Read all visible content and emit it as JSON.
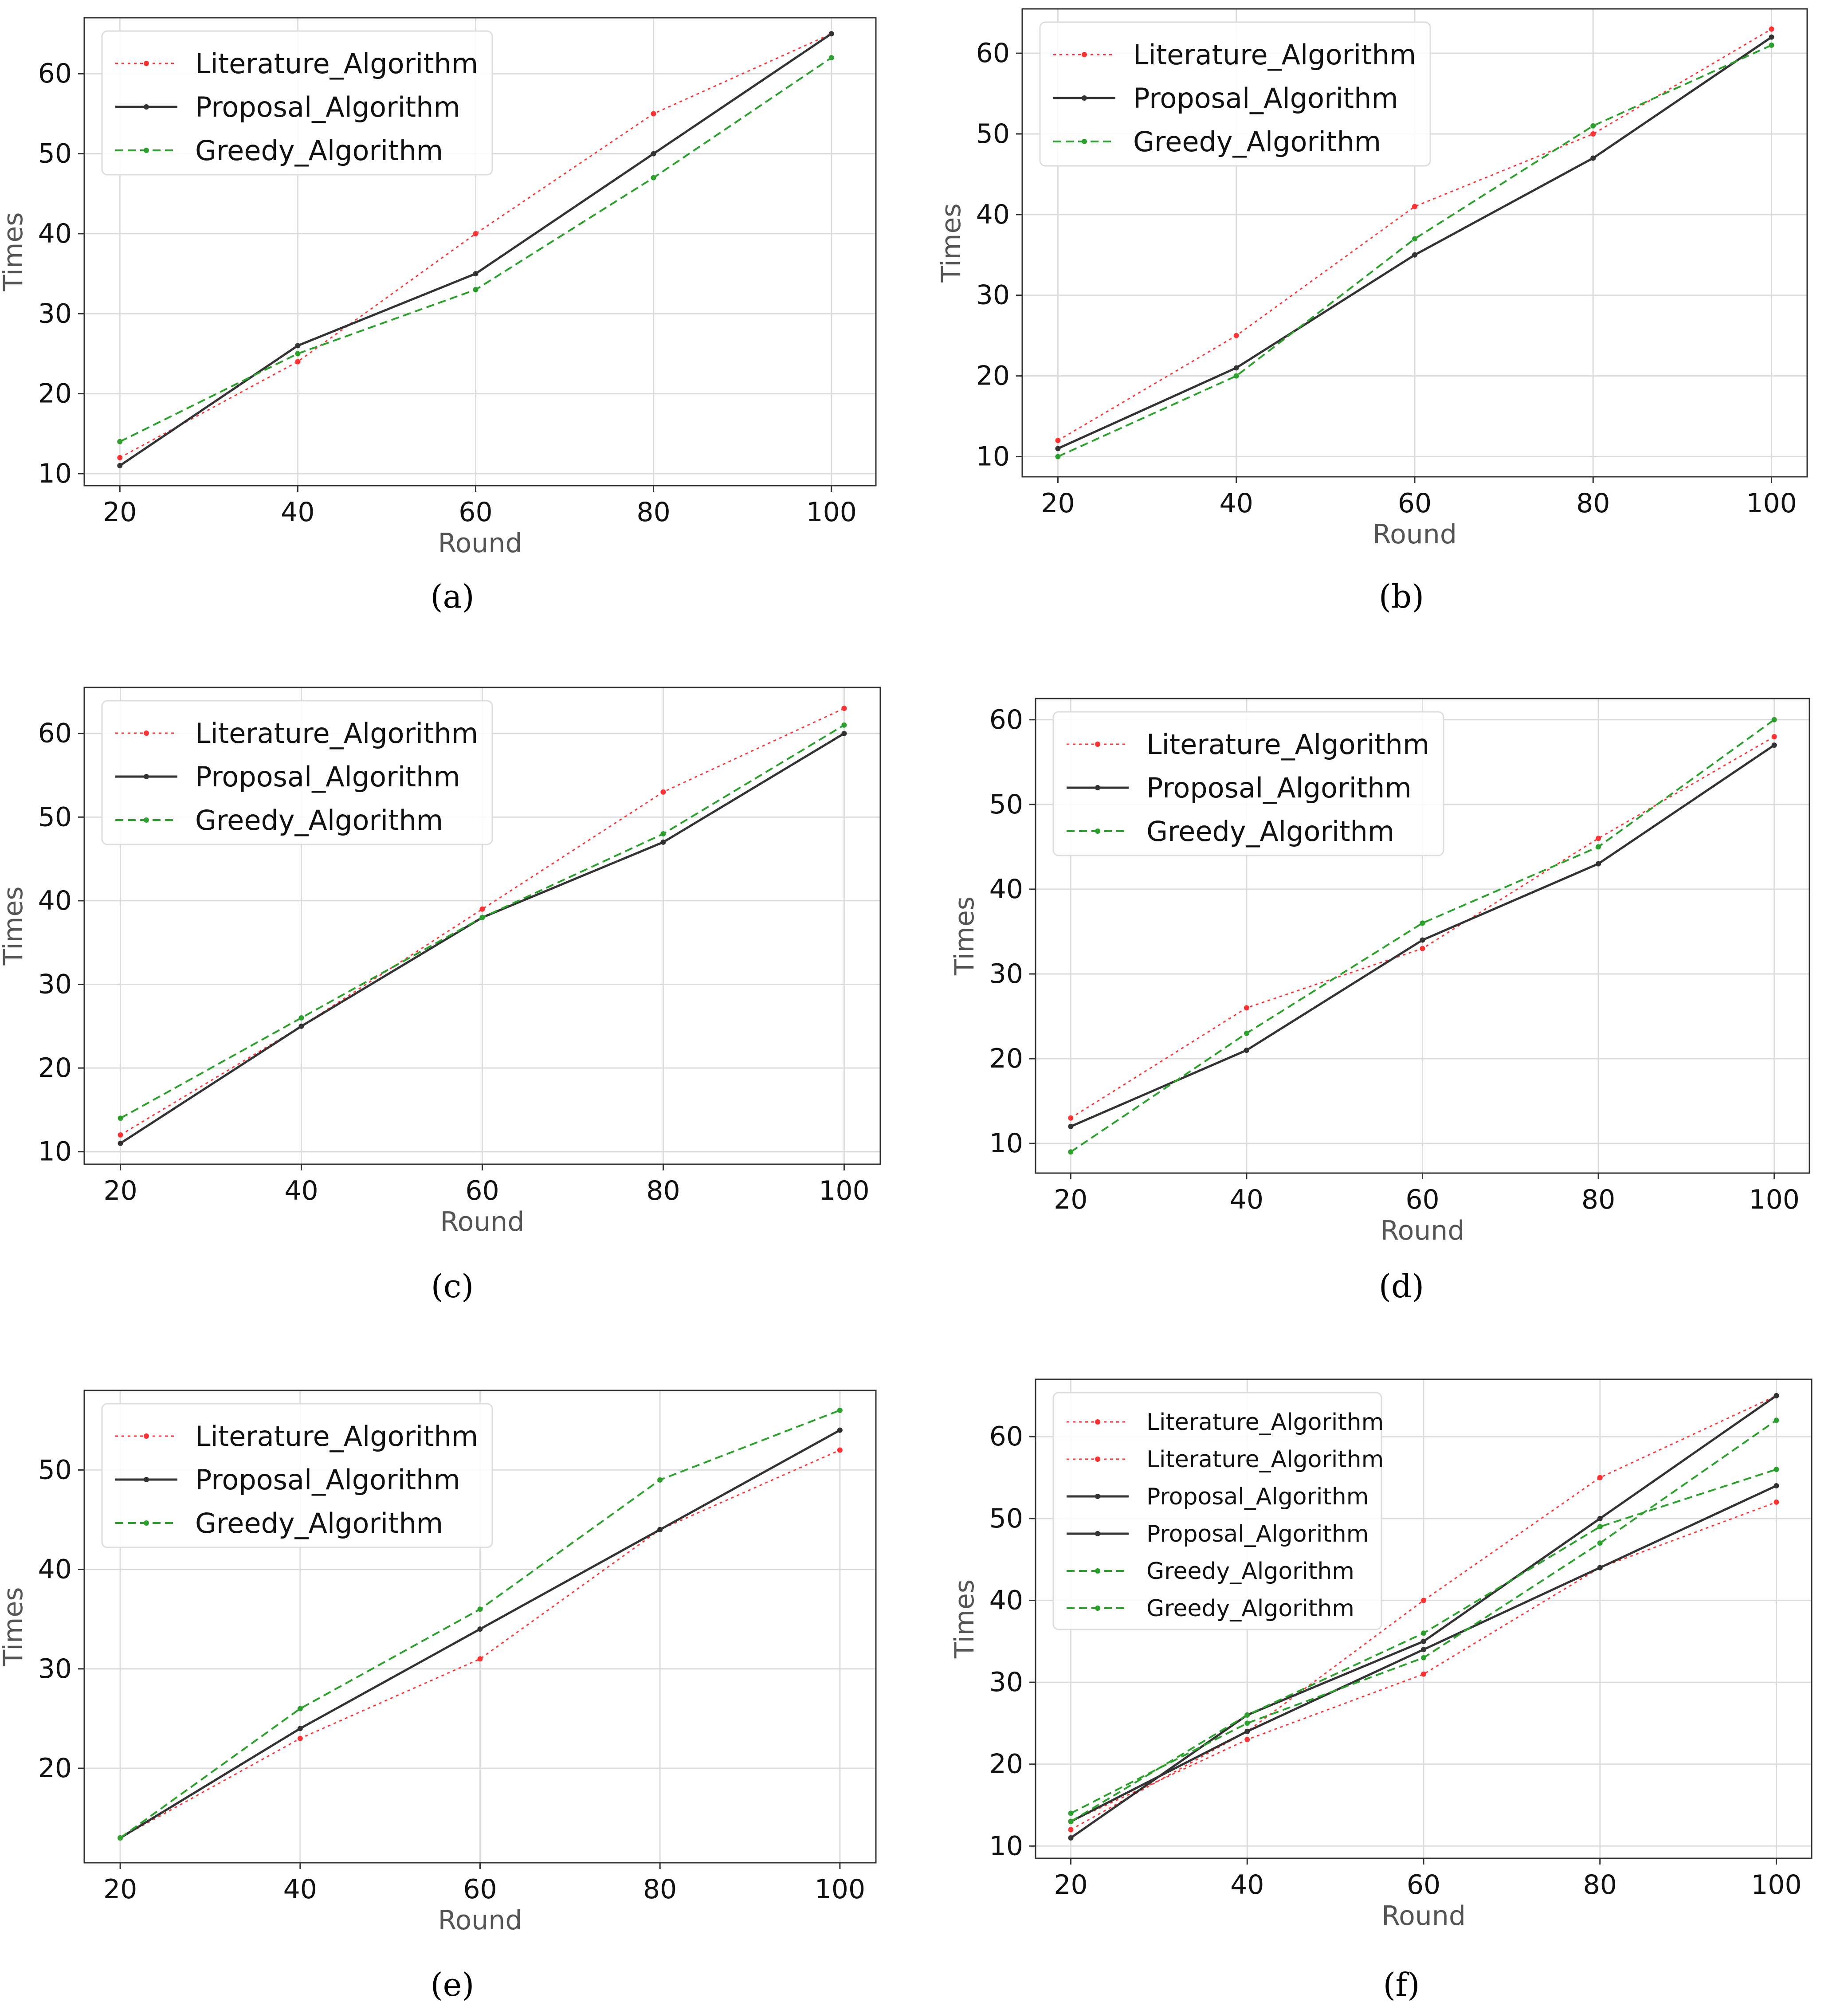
{
  "chart_data": [
    {
      "type": "line",
      "caption": "(a)",
      "title": "",
      "xlabel": "Round",
      "ylabel": "Times",
      "x": [
        20,
        40,
        60,
        80,
        100
      ],
      "xticks": [
        20,
        40,
        60,
        80,
        100
      ],
      "yticks": [
        10,
        20,
        30,
        40,
        50,
        60
      ],
      "xlim": [
        16,
        105
      ],
      "ylim": [
        8.5,
        67
      ],
      "grid": true,
      "legend_position": "upper-left",
      "series": [
        {
          "name": "Literature_Algorithm",
          "values": [
            12,
            24,
            40,
            55,
            65
          ],
          "color": "#ff3333",
          "style": "dotted"
        },
        {
          "name": "Proposal_Algorithm",
          "values": [
            11,
            26,
            35,
            50,
            65
          ],
          "color": "#333333",
          "style": "solid"
        },
        {
          "name": "Greedy_Algorithm",
          "values": [
            14,
            25,
            33,
            47,
            62
          ],
          "color": "#2ca02c",
          "style": "dashed"
        }
      ]
    },
    {
      "type": "line",
      "caption": "(b)",
      "title": "",
      "xlabel": "Round",
      "ylabel": "Times",
      "x": [
        20,
        40,
        60,
        80,
        100
      ],
      "xticks": [
        20,
        40,
        60,
        80,
        100
      ],
      "yticks": [
        10,
        20,
        30,
        40,
        50,
        60
      ],
      "xlim": [
        16,
        104
      ],
      "ylim": [
        7.5,
        65.5
      ],
      "grid": true,
      "legend_position": "upper-left",
      "series": [
        {
          "name": "Literature_Algorithm",
          "values": [
            12,
            25,
            41,
            50,
            63
          ],
          "color": "#ff3333",
          "style": "dotted"
        },
        {
          "name": "Proposal_Algorithm",
          "values": [
            11,
            21,
            35,
            47,
            62
          ],
          "color": "#333333",
          "style": "solid"
        },
        {
          "name": "Greedy_Algorithm",
          "values": [
            10,
            20,
            37,
            51,
            61
          ],
          "color": "#2ca02c",
          "style": "dashed"
        }
      ]
    },
    {
      "type": "line",
      "caption": "(c)",
      "title": "",
      "xlabel": "Round",
      "ylabel": "Times",
      "x": [
        20,
        40,
        60,
        80,
        100
      ],
      "xticks": [
        20,
        40,
        60,
        80,
        100
      ],
      "yticks": [
        10,
        20,
        30,
        40,
        50,
        60
      ],
      "xlim": [
        16,
        104
      ],
      "ylim": [
        8.5,
        65.5
      ],
      "grid": true,
      "legend_position": "upper-left",
      "series": [
        {
          "name": "Literature_Algorithm",
          "values": [
            12,
            25,
            39,
            53,
            63
          ],
          "color": "#ff3333",
          "style": "dotted"
        },
        {
          "name": "Proposal_Algorithm",
          "values": [
            11,
            25,
            38,
            47,
            60
          ],
          "color": "#333333",
          "style": "solid"
        },
        {
          "name": "Greedy_Algorithm",
          "values": [
            14,
            26,
            38,
            48,
            61
          ],
          "color": "#2ca02c",
          "style": "dashed"
        }
      ]
    },
    {
      "type": "line",
      "caption": "(d)",
      "title": "",
      "xlabel": "Round",
      "ylabel": "Times",
      "x": [
        20,
        40,
        60,
        80,
        100
      ],
      "xticks": [
        20,
        40,
        60,
        80,
        100
      ],
      "yticks": [
        10,
        20,
        30,
        40,
        50,
        60
      ],
      "xlim": [
        16,
        104
      ],
      "ylim": [
        6.5,
        62.5
      ],
      "grid": true,
      "legend_position": "upper-left",
      "series": [
        {
          "name": "Literature_Algorithm",
          "values": [
            13,
            26,
            33,
            46,
            58
          ],
          "color": "#ff3333",
          "style": "dotted"
        },
        {
          "name": "Proposal_Algorithm",
          "values": [
            12,
            21,
            34,
            43,
            57
          ],
          "color": "#333333",
          "style": "solid"
        },
        {
          "name": "Greedy_Algorithm",
          "values": [
            9,
            23,
            36,
            45,
            60
          ],
          "color": "#2ca02c",
          "style": "dashed"
        }
      ]
    },
    {
      "type": "line",
      "caption": "(e)",
      "title": "",
      "xlabel": "Round",
      "ylabel": "Times",
      "x": [
        20,
        40,
        60,
        80,
        100
      ],
      "xticks": [
        20,
        40,
        60,
        80,
        100
      ],
      "yticks": [
        20,
        30,
        40,
        50
      ],
      "xlim": [
        16,
        104
      ],
      "ylim": [
        10.5,
        58
      ],
      "grid": true,
      "legend_position": "upper-left",
      "series": [
        {
          "name": "Literature_Algorithm",
          "values": [
            13,
            23,
            31,
            44,
            52
          ],
          "color": "#ff3333",
          "style": "dotted"
        },
        {
          "name": "Proposal_Algorithm",
          "values": [
            13,
            24,
            34,
            44,
            54
          ],
          "color": "#333333",
          "style": "solid"
        },
        {
          "name": "Greedy_Algorithm",
          "values": [
            13,
            26,
            36,
            49,
            56
          ],
          "color": "#2ca02c",
          "style": "dashed"
        }
      ]
    },
    {
      "type": "line",
      "caption": "(f)",
      "title": "",
      "xlabel": "Round",
      "ylabel": "Times",
      "x": [
        20,
        40,
        60,
        80,
        100
      ],
      "xticks": [
        20,
        40,
        60,
        80,
        100
      ],
      "yticks": [
        10,
        20,
        30,
        40,
        50,
        60
      ],
      "xlim": [
        16,
        104
      ],
      "ylim": [
        8.5,
        67
      ],
      "grid": true,
      "legend_position": "upper-left",
      "legend_small": true,
      "series": [
        {
          "name": "Literature_Algorithm",
          "values": [
            12,
            24,
            40,
            55,
            65
          ],
          "color": "#ff3333",
          "style": "dotted"
        },
        {
          "name": "Literature_Algorithm",
          "values": [
            13,
            23,
            31,
            44,
            52
          ],
          "color": "#ff3333",
          "style": "dotted"
        },
        {
          "name": "Proposal_Algorithm",
          "values": [
            11,
            26,
            35,
            50,
            65
          ],
          "color": "#333333",
          "style": "solid"
        },
        {
          "name": "Proposal_Algorithm",
          "values": [
            13,
            24,
            34,
            44,
            54
          ],
          "color": "#333333",
          "style": "solid"
        },
        {
          "name": "Greedy_Algorithm",
          "values": [
            14,
            25,
            33,
            47,
            62
          ],
          "color": "#2ca02c",
          "style": "dashed"
        },
        {
          "name": "Greedy_Algorithm",
          "values": [
            13,
            26,
            36,
            49,
            56
          ],
          "color": "#2ca02c",
          "style": "dashed"
        }
      ]
    }
  ]
}
